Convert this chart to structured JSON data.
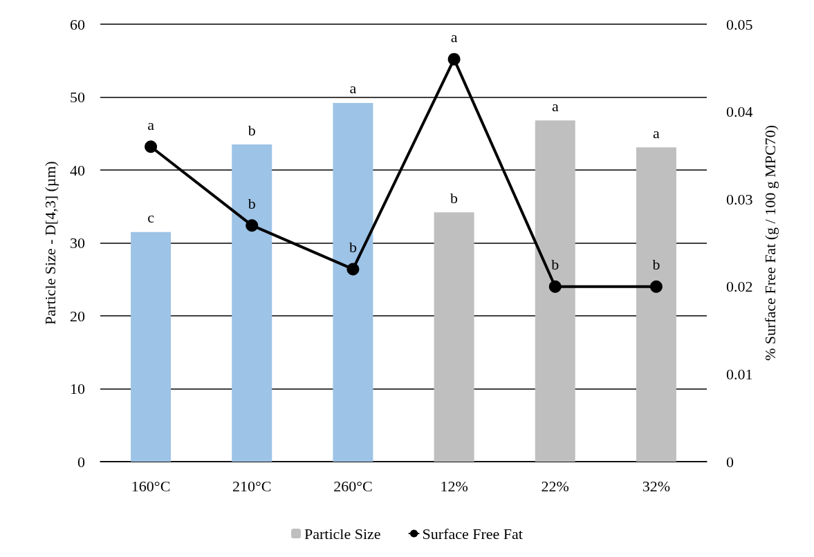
{
  "chart_data": {
    "type": "bar",
    "categories": [
      "160°C",
      "210°C",
      "260°C",
      "12%",
      "22%",
      "32%"
    ],
    "ylabel": "Particle Size - D[4,3] (µm)",
    "y2label": "% Surface Free Fat (g / 100 g MPC70)",
    "ylim": [
      0,
      60
    ],
    "yticks": [
      0,
      10,
      20,
      30,
      40,
      50,
      60
    ],
    "y2lim": [
      0,
      0.05
    ],
    "y2ticks": [
      0,
      0.01,
      0.02,
      0.03,
      0.04,
      0.05
    ],
    "grid": "y",
    "legend": "bottom",
    "series": [
      {
        "name": "Particle Size",
        "color": "#bfbfbf",
        "colors": [
          "#9dc3e6",
          "#9dc3e6",
          "#9dc3e6",
          "#bfbfbf",
          "#bfbfbf",
          "#bfbfbf"
        ],
        "values": [
          31.5,
          43.5,
          49.2,
          34.2,
          46.8,
          43.1
        ],
        "value_labels": [
          "c",
          "b",
          "a",
          "b",
          "a",
          "a"
        ]
      },
      {
        "name": "Surface Free Fat",
        "type": "line",
        "axis": "y2",
        "color": "#000000",
        "marker": "circle",
        "line_style": "solid",
        "values": [
          0.036,
          0.027,
          0.022,
          0.046,
          0.02,
          0.02
        ],
        "value_labels": [
          "a",
          "b",
          "b",
          "a",
          "b",
          "b"
        ]
      }
    ]
  }
}
